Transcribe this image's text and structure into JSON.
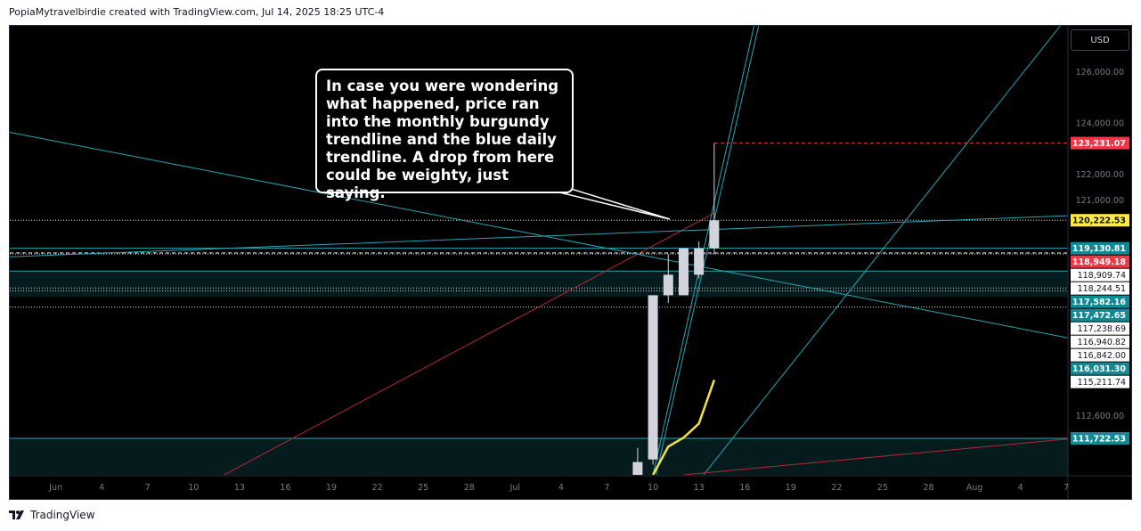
{
  "header": {
    "text": "PopiaMytravelbirdie created with TradingView.com, Jul 14, 2025 18:25 UTC-4"
  },
  "currency_button": "USD",
  "annotation": {
    "lines": [
      "In case you were wondering",
      "what happened, price ran",
      "into the monthly burgundy",
      "trendline and the blue daily",
      "trendline. A drop from here",
      "could be weighty, just saying."
    ]
  },
  "footer": {
    "brand": "TradingView",
    "icon": "tradingview-logo-icon"
  },
  "colors": {
    "background": "#000000",
    "teal": "#26a6b2",
    "burgundy": "#b52a34",
    "red_label": "#f23645",
    "yellow_label": "#ffeb3b",
    "teal_label": "#128a96",
    "candle": "#d1d4dc",
    "yellow_line": "#f5e341"
  },
  "chart_data": {
    "type": "candlestick",
    "y_axis": {
      "ticks": [
        {
          "value": 126000,
          "label": "126,000.00"
        },
        {
          "value": 124000,
          "label": "124,000.00"
        },
        {
          "value": 122000,
          "label": "122,000.00"
        },
        {
          "value": 121000,
          "label": "121,000.00"
        },
        {
          "value": 112600,
          "label": "112,600.00"
        }
      ],
      "ylim": [
        110300,
        127800
      ]
    },
    "x_axis": {
      "ticks": [
        {
          "label": "Jun",
          "index": -31
        },
        {
          "label": "4",
          "index": -28
        },
        {
          "label": "7",
          "index": -25
        },
        {
          "label": "10",
          "index": -22
        },
        {
          "label": "13",
          "index": -19
        },
        {
          "label": "16",
          "index": -16
        },
        {
          "label": "19",
          "index": -13
        },
        {
          "label": "22",
          "index": -10
        },
        {
          "label": "25",
          "index": -7
        },
        {
          "label": "28",
          "index": -4
        },
        {
          "label": "Jul",
          "index": -1
        },
        {
          "label": "4",
          "index": 2
        },
        {
          "label": "7",
          "index": 5
        },
        {
          "label": "10",
          "index": 8
        },
        {
          "label": "13",
          "index": 11
        },
        {
          "label": "16",
          "index": 14
        },
        {
          "label": "19",
          "index": 17
        },
        {
          "label": "22",
          "index": 20
        },
        {
          "label": "25",
          "index": 23
        },
        {
          "label": "28",
          "index": 26
        },
        {
          "label": "Aug",
          "index": 29
        },
        {
          "label": "4",
          "index": 32
        },
        {
          "label": "7",
          "index": 35
        }
      ],
      "xlim": [
        -34,
        35.1
      ]
    },
    "candles": [
      {
        "date": "Jul 9",
        "index": 7,
        "open": 110300,
        "high": 111350,
        "low": 110300,
        "close": 110800
      },
      {
        "date": "Jul 10",
        "index": 8,
        "open": 110900,
        "high": 117300,
        "low": 110700,
        "close": 117300
      },
      {
        "date": "Jul 11",
        "index": 9,
        "open": 117300,
        "high": 118900,
        "low": 117000,
        "close": 118100
      },
      {
        "date": "Jul 12",
        "index": 10,
        "open": 117300,
        "high": 119150,
        "low": 117300,
        "close": 119130
      },
      {
        "date": "Jul 13",
        "index": 11,
        "open": 118100,
        "high": 119400,
        "low": 117950,
        "close": 119130
      },
      {
        "date": "Jul 14",
        "index": 12,
        "open": 119130,
        "high": 123231,
        "low": 118900,
        "close": 120220
      }
    ],
    "yellow_line": [
      {
        "index": 8,
        "value": 110300
      },
      {
        "index": 9,
        "value": 111400
      },
      {
        "index": 10,
        "value": 111750
      },
      {
        "index": 11,
        "value": 112300
      },
      {
        "index": 12,
        "value": 114000
      }
    ],
    "price_labels": [
      {
        "value": 123231.07,
        "label": "123,231.07",
        "style": "red"
      },
      {
        "value": 120222.53,
        "label": "120,222.53",
        "style": "yellow"
      },
      {
        "value": 119130.81,
        "label": "119,130.81",
        "style": "teal"
      },
      {
        "value": 118949.18,
        "label": "118,949.18",
        "style": "red"
      },
      {
        "value": 118909.74,
        "label": "118,909.74",
        "style": "plain"
      },
      {
        "value": 118244.51,
        "label": "118,244.51",
        "style": "plain"
      },
      {
        "value": 117582.16,
        "label": "117,582.16",
        "style": "teal"
      },
      {
        "value": 117472.65,
        "label": "117,472.65",
        "style": "teal"
      },
      {
        "value": 117238.69,
        "label": "117,238.69",
        "style": "plain"
      },
      {
        "value": 116940.82,
        "label": "116,940.82",
        "style": "plain"
      },
      {
        "value": 116842.0,
        "label": "116,842.00",
        "style": "plain"
      },
      {
        "value": 116031.3,
        "label": "116,031.30",
        "style": "teal"
      },
      {
        "value": 115211.74,
        "label": "115,211.74",
        "style": "plain"
      },
      {
        "value": 111722.53,
        "label": "111,722.53",
        "style": "teal"
      }
    ],
    "horizontal_lines": [
      {
        "value": 123231.07,
        "style": "red-dashed",
        "from_index": 12
      },
      {
        "value": 120222.53,
        "style": "white-dotted"
      },
      {
        "value": 119130.81,
        "style": "teal-solid"
      },
      {
        "value": 118949.18,
        "style": "white-dashed"
      },
      {
        "value": 118909.74,
        "style": "white-dotted"
      },
      {
        "value": 118244.51,
        "style": "teal-solid"
      },
      {
        "value": 117582.16,
        "style": "white-dotted"
      },
      {
        "value": 117472.65,
        "style": "white-dotted"
      },
      {
        "value": 116842.0,
        "style": "white-dotted"
      },
      {
        "value": 111722.53,
        "style": "teal-solid"
      }
    ],
    "zones": [
      {
        "from": 117238.69,
        "to": 118244.51
      },
      {
        "from": 110300,
        "to": 111722.53
      }
    ],
    "trendlines": [
      {
        "name": "monthly burgundy trendline",
        "color": "burgundy",
        "points": [
          {
            "index": -20,
            "value": 110300
          },
          {
            "index": 12,
            "value": 120500
          }
        ]
      },
      {
        "name": "teal descending",
        "color": "teal",
        "points": [
          {
            "index": -34,
            "value": 123650
          },
          {
            "index": 35.1,
            "value": 115640
          }
        ]
      },
      {
        "name": "teal rising",
        "color": "teal",
        "points": [
          {
            "index": -34,
            "value": 118800
          },
          {
            "index": 35.1,
            "value": 120400
          }
        ]
      },
      {
        "name": "daily trendline 1",
        "color": "teal",
        "points": [
          {
            "index": 8,
            "value": 110300
          },
          {
            "index": 14.6,
            "value": 127800
          }
        ]
      },
      {
        "name": "daily trendline 2",
        "color": "teal",
        "points": [
          {
            "index": 8.2,
            "value": 110300
          },
          {
            "index": 14.9,
            "value": 127800
          }
        ]
      },
      {
        "name": "daily trendline 3",
        "color": "teal",
        "points": [
          {
            "index": 11.3,
            "value": 110300
          },
          {
            "index": 34.6,
            "value": 127800
          }
        ]
      },
      {
        "name": "burgundy lower",
        "color": "burgundy",
        "points": [
          {
            "index": 10,
            "value": 110300
          },
          {
            "index": 35.1,
            "value": 111700
          }
        ]
      }
    ]
  }
}
